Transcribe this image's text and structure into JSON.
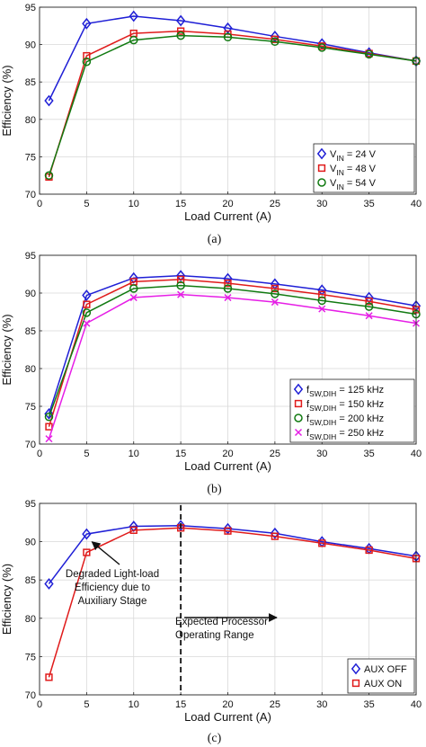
{
  "chart_data": [
    {
      "type": "line",
      "x": [
        1,
        5,
        10,
        15,
        20,
        25,
        30,
        35,
        40
      ],
      "xlabel": "Load Current (A)",
      "ylabel": "Efficiency (%)",
      "xlim": [
        0,
        40
      ],
      "ylim": [
        70,
        95
      ],
      "xticks": [
        0,
        5,
        10,
        15,
        20,
        25,
        30,
        35,
        40
      ],
      "yticks": [
        70,
        75,
        80,
        85,
        90,
        95
      ],
      "grid": true,
      "legend_position": "bottom-right",
      "caption": "(a)",
      "series": [
        {
          "name": "V_IN = 24 V",
          "legend_main": "V",
          "legend_sub": "IN",
          "legend_tail": " = 24 V",
          "color": "#1f1fd6",
          "marker": "diamond",
          "values": [
            82.5,
            92.8,
            93.8,
            93.2,
            92.2,
            91.1,
            90.1,
            88.9,
            87.8
          ]
        },
        {
          "name": "V_IN = 48 V",
          "legend_main": "V",
          "legend_sub": "IN",
          "legend_tail": " = 48 V",
          "color": "#e01b1b",
          "marker": "square",
          "values": [
            72.3,
            88.5,
            91.5,
            91.8,
            91.4,
            90.7,
            89.8,
            88.8,
            87.8
          ]
        },
        {
          "name": "V_IN = 54 V",
          "legend_main": "V",
          "legend_sub": "IN",
          "legend_tail": " = 54 V",
          "color": "#117a11",
          "marker": "circle",
          "values": [
            72.5,
            87.7,
            90.6,
            91.2,
            91.0,
            90.4,
            89.6,
            88.7,
            87.8
          ]
        }
      ]
    },
    {
      "type": "line",
      "x": [
        1,
        5,
        10,
        15,
        20,
        25,
        30,
        35,
        40
      ],
      "xlabel": "Load Current (A)",
      "ylabel": "Efficiency (%)",
      "xlim": [
        0,
        40
      ],
      "ylim": [
        70,
        95
      ],
      "xticks": [
        0,
        5,
        10,
        15,
        20,
        25,
        30,
        35,
        40
      ],
      "yticks": [
        70,
        75,
        80,
        85,
        90,
        95
      ],
      "grid": true,
      "legend_position": "bottom-right",
      "caption": "(b)",
      "series": [
        {
          "name": "f_SW,DIH = 125 kHz",
          "legend_main": "f",
          "legend_sub": "SW,DIH",
          "legend_tail": " = 125 kHz",
          "color": "#1f1fd6",
          "marker": "diamond",
          "values": [
            74.0,
            89.7,
            92.0,
            92.3,
            91.9,
            91.2,
            90.4,
            89.4,
            88.3
          ]
        },
        {
          "name": "f_SW,DIH = 150 kHz",
          "legend_main": "f",
          "legend_sub": "SW,DIH",
          "legend_tail": " = 150 kHz",
          "color": "#e01b1b",
          "marker": "square",
          "values": [
            72.3,
            88.5,
            91.5,
            91.8,
            91.3,
            90.6,
            89.8,
            88.9,
            87.8
          ]
        },
        {
          "name": "f_SW,DIH = 200 kHz",
          "legend_main": "f",
          "legend_sub": "SW,DIH",
          "legend_tail": " = 200 kHz",
          "color": "#117a11",
          "marker": "circle",
          "values": [
            73.6,
            87.4,
            90.6,
            91.0,
            90.6,
            89.9,
            89.0,
            88.2,
            87.2
          ]
        },
        {
          "name": "f_SW,DIH = 250 kHz",
          "legend_main": "f",
          "legend_sub": "SW,DIH",
          "legend_tail": " = 250 kHz",
          "color": "#e61ee6",
          "marker": "x",
          "values": [
            70.7,
            86.0,
            89.4,
            89.8,
            89.4,
            88.8,
            87.9,
            87.0,
            86.0
          ]
        }
      ]
    },
    {
      "type": "line",
      "x": [
        1,
        5,
        10,
        15,
        20,
        25,
        30,
        35,
        40
      ],
      "xlabel": "Load Current (A)",
      "ylabel": "Efficiency (%)",
      "xlim": [
        0,
        40
      ],
      "ylim": [
        70,
        95
      ],
      "xticks": [
        0,
        5,
        10,
        15,
        20,
        25,
        30,
        35,
        40
      ],
      "yticks": [
        70,
        75,
        80,
        85,
        90,
        95
      ],
      "grid": true,
      "legend_position": "bottom-right",
      "caption": "(c)",
      "series": [
        {
          "name": "AUX OFF",
          "legend_main": "AUX OFF",
          "legend_sub": "",
          "legend_tail": "",
          "color": "#1f1fd6",
          "marker": "diamond",
          "values": [
            84.5,
            91.0,
            92.0,
            92.1,
            91.7,
            91.1,
            90.0,
            89.1,
            88.1
          ]
        },
        {
          "name": "AUX ON",
          "legend_main": "AUX ON",
          "legend_sub": "",
          "legend_tail": "",
          "color": "#e01b1b",
          "marker": "square",
          "values": [
            72.3,
            88.6,
            91.5,
            91.8,
            91.4,
            90.7,
            89.8,
            88.9,
            87.8
          ]
        }
      ],
      "annotations": {
        "degraded_lines": [
          "Degraded Light-load",
          "Efficiency due to",
          "Auxiliary Stage"
        ],
        "range_lines": [
          "Expected Processor",
          "Operating Range"
        ],
        "divider_x": 15,
        "degraded_arrow_target": {
          "x": 5,
          "y": 90.8
        },
        "range_arrow_end_x": 25
      }
    }
  ]
}
